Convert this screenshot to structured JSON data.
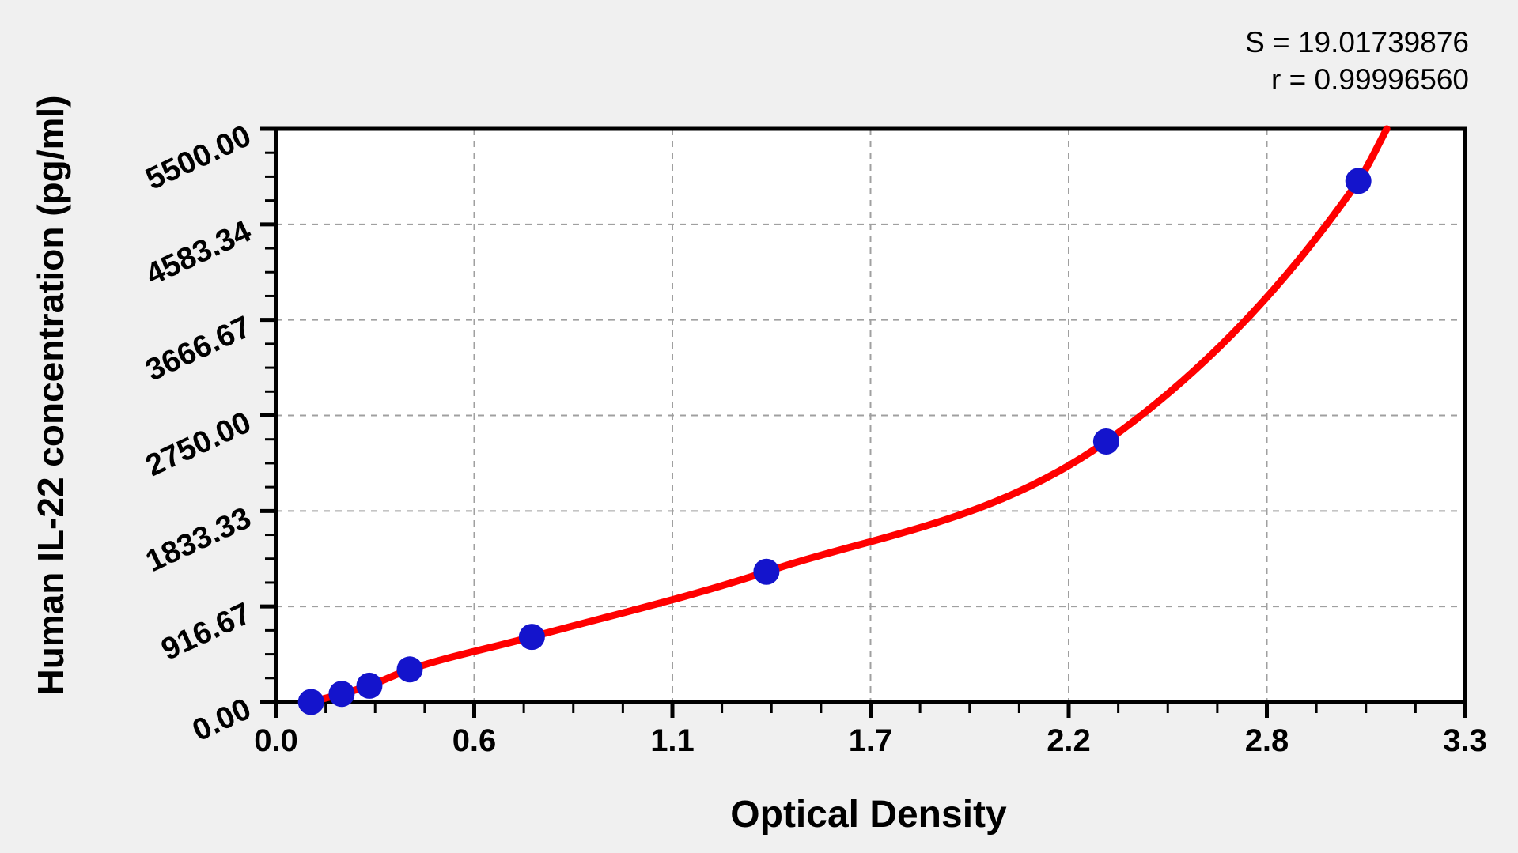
{
  "window": {
    "background": "#f0f0f0"
  },
  "stats": {
    "s_line": "S = 19.01739876",
    "r_line": "r = 0.99996560"
  },
  "chart_data": {
    "type": "scatter",
    "title": "",
    "xlabel": "Optical Density",
    "ylabel": "Human IL-22 concentration (pg/ml)",
    "xlim": [
      0,
      3.3
    ],
    "ylim": [
      0,
      5500
    ],
    "x_ticks": [
      0,
      0.55,
      1.1,
      1.65,
      2.2,
      2.75,
      3.3
    ],
    "x_tick_labels": [
      "0.0",
      "0.6",
      "1.1",
      "1.7",
      "2.2",
      "2.8",
      "3.3"
    ],
    "y_ticks": [
      0,
      916.67,
      1833.33,
      2750,
      3666.67,
      4583.34,
      5500
    ],
    "y_tick_labels": [
      "0.00",
      "916.67",
      "1833.33",
      "2750.00",
      "3666.67",
      "4583.34",
      "5500.00"
    ],
    "minor_divisions": 4,
    "grid": "dashed",
    "legend": "none",
    "series": [
      {
        "name": "standard-points",
        "type": "scatter",
        "color": "#1414cc",
        "x": [
          0.097,
          0.182,
          0.259,
          0.371,
          0.71,
          1.361,
          2.304,
          3.004
        ],
        "y": [
          0,
          78.125,
          156.25,
          312.5,
          625,
          1250,
          2500,
          5000
        ]
      },
      {
        "name": "fit-curve",
        "type": "line",
        "color": "#ff0000",
        "x": [
          0.097,
          0.182,
          0.259,
          0.371,
          0.71,
          1.361,
          2.304,
          3.004,
          3.083
        ],
        "y": [
          0,
          78.125,
          156.25,
          312.5,
          625,
          1250,
          2500,
          5000,
          5500
        ]
      }
    ],
    "fit_stats": {
      "S": "19.01739876",
      "r": "0.99996560"
    }
  },
  "colors": {
    "page_background": "#f0f0f0",
    "plot_background": "#ffffff",
    "grid": "#a0a0a0",
    "axis": "#000000",
    "curve": "#ff0000",
    "points": "#1414cc"
  }
}
